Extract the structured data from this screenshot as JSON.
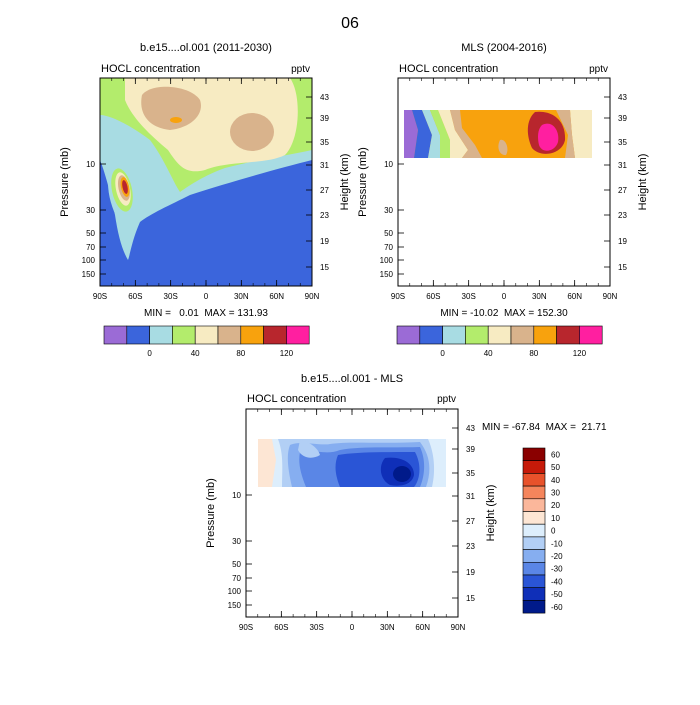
{
  "page_title": "06",
  "chart_data": [
    {
      "type": "heatmap",
      "title": "b.e15....ol.001 (2011-2030)",
      "left_label": "HOCL concentration",
      "right_label": "pptv",
      "ylabel": "Pressure (mb)",
      "ylabel_right": "Height (km)",
      "x_ticks": [
        "90S",
        "60S",
        "30S",
        "0",
        "30N",
        "60N",
        "90N"
      ],
      "y_ticks": [
        "10",
        "30",
        "50",
        "70",
        "100",
        "150"
      ],
      "height_ticks": [
        "43",
        "39",
        "35",
        "31",
        "27",
        "23",
        "19",
        "15"
      ],
      "stats": "MIN =   0.01  MAX = 131.93",
      "colors": [
        "#9b6bd6",
        "#3b65dc",
        "#a8dce3",
        "#b3ec6c",
        "#f7ebc2",
        "#d9b38c",
        "#f8a20d",
        "#b8262d",
        "#ff1fa0"
      ],
      "colorbar_labels": [
        "0",
        "40",
        "80",
        "120"
      ]
    },
    {
      "type": "heatmap",
      "title": "MLS (2004-2016)",
      "left_label": "HOCL concentration",
      "right_label": "pptv",
      "ylabel": "Pressure (mb)",
      "ylabel_right": "Height (km)",
      "x_ticks": [
        "90S",
        "60S",
        "30S",
        "0",
        "30N",
        "60N",
        "90N"
      ],
      "y_ticks": [
        "10",
        "30",
        "50",
        "70",
        "100",
        "150"
      ],
      "height_ticks": [
        "43",
        "39",
        "35",
        "31",
        "27",
        "23",
        "19",
        "15"
      ],
      "stats": "MIN = -10.02  MAX = 152.30",
      "colors": [
        "#9b6bd6",
        "#3b65dc",
        "#a8dce3",
        "#b3ec6c",
        "#f7ebc2",
        "#d9b38c",
        "#f8a20d",
        "#b8262d",
        "#ff1fa0"
      ],
      "colorbar_labels": [
        "0",
        "40",
        "80",
        "120"
      ]
    },
    {
      "type": "heatmap",
      "title": "b.e15....ol.001 - MLS",
      "left_label": "HOCL concentration",
      "right_label": "pptv",
      "ylabel": "Pressure (mb)",
      "ylabel_right": "Height (km)",
      "x_ticks": [
        "90S",
        "60S",
        "30S",
        "0",
        "30N",
        "60N",
        "90N"
      ],
      "y_ticks": [
        "10",
        "30",
        "50",
        "70",
        "100",
        "150"
      ],
      "height_ticks": [
        "43",
        "39",
        "35",
        "31",
        "27",
        "23",
        "19",
        "15"
      ],
      "stats": "MIN = -67.84  MAX =  21.71",
      "colors": [
        "#8a0000",
        "#c61a09",
        "#e8522b",
        "#f5855c",
        "#fbb79b",
        "#fde6d4",
        "#ddeefc",
        "#b2cff5",
        "#86aef0",
        "#5a86e6",
        "#2a55d6",
        "#0f2fb8",
        "#001a8a"
      ],
      "colorbar_labels": [
        "60",
        "50",
        "40",
        "30",
        "20",
        "10",
        "0",
        "-10",
        "-20",
        "-30",
        "-40",
        "-50",
        "-60"
      ]
    }
  ]
}
